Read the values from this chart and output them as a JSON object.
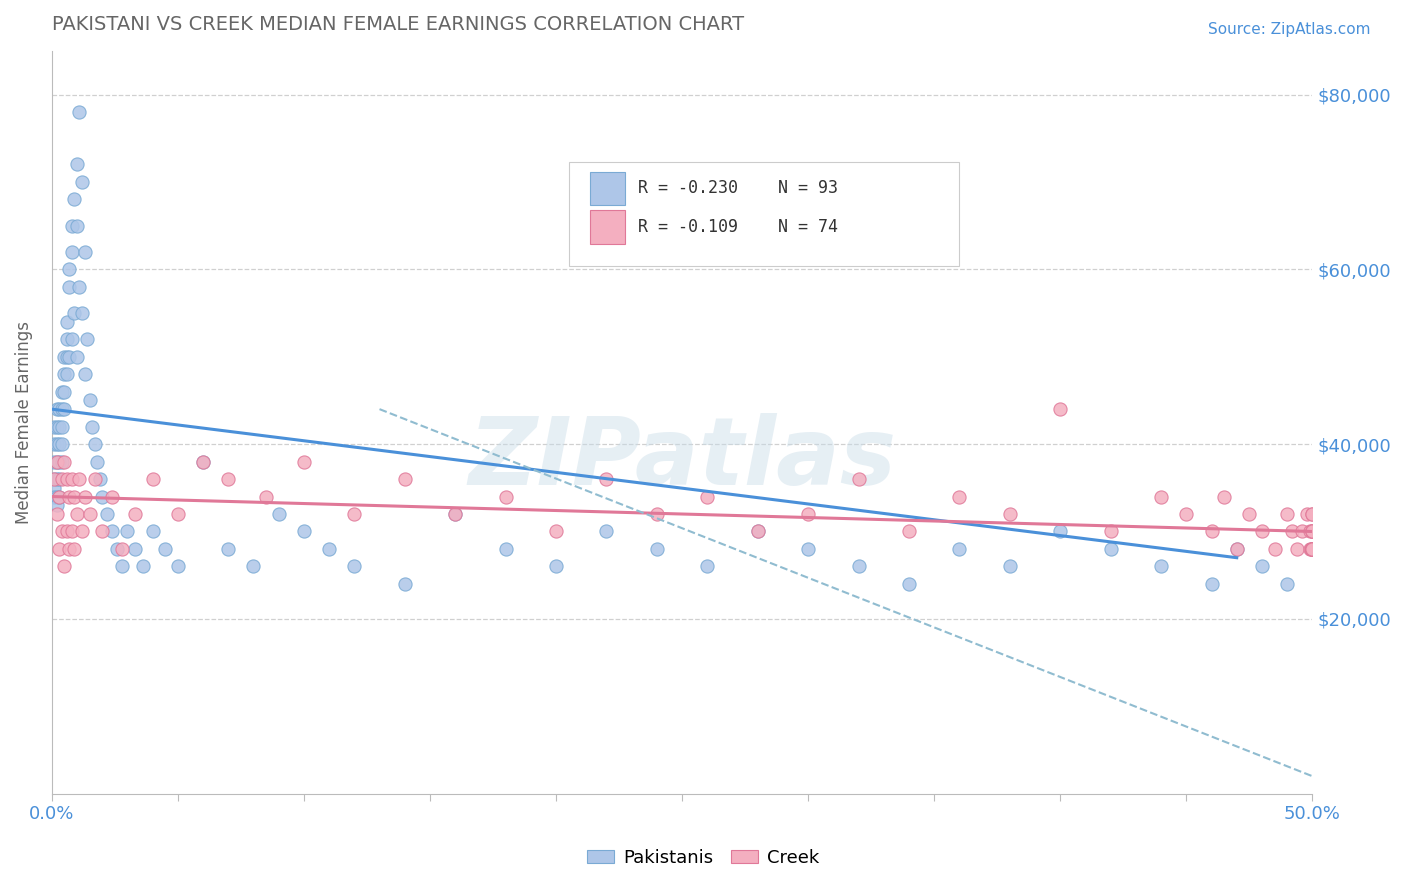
{
  "title": "PAKISTANI VS CREEK MEDIAN FEMALE EARNINGS CORRELATION CHART",
  "source_text": "Source: ZipAtlas.com",
  "ylabel": "Median Female Earnings",
  "xlim": [
    0.0,
    0.5
  ],
  "ylim": [
    0,
    85000
  ],
  "xticks": [
    0.0,
    0.05,
    0.1,
    0.15,
    0.2,
    0.25,
    0.3,
    0.35,
    0.4,
    0.45,
    0.5
  ],
  "xticklabels": [
    "0.0%",
    "",
    "",
    "",
    "",
    "",
    "",
    "",
    "",
    "",
    "50.0%"
  ],
  "ytick_labels_right": [
    "$20,000",
    "$40,000",
    "$60,000",
    "$80,000"
  ],
  "ytick_values_right": [
    20000,
    40000,
    60000,
    80000
  ],
  "pakistani_color": "#aec6e8",
  "creek_color": "#f4afc0",
  "pakistani_edge": "#7aaad4",
  "creek_edge": "#e07898",
  "blue_line_color": "#4a90d9",
  "pink_line_color": "#e07898",
  "dash_line_color": "#90bcd0",
  "legend_R1": "R = -0.230",
  "legend_N1": "N = 93",
  "legend_R2": "R = -0.109",
  "legend_N2": "N = 74",
  "watermark": "ZIPatlas",
  "watermark_color": "#c8dce8",
  "pakistani_x": [
    0.001,
    0.001,
    0.001,
    0.001,
    0.001,
    0.001,
    0.002,
    0.002,
    0.002,
    0.002,
    0.002,
    0.002,
    0.002,
    0.003,
    0.003,
    0.003,
    0.003,
    0.003,
    0.003,
    0.004,
    0.004,
    0.004,
    0.004,
    0.004,
    0.005,
    0.005,
    0.005,
    0.005,
    0.006,
    0.006,
    0.006,
    0.006,
    0.007,
    0.007,
    0.007,
    0.008,
    0.008,
    0.008,
    0.009,
    0.009,
    0.01,
    0.01,
    0.01,
    0.011,
    0.011,
    0.012,
    0.012,
    0.013,
    0.013,
    0.014,
    0.015,
    0.016,
    0.017,
    0.018,
    0.019,
    0.02,
    0.022,
    0.024,
    0.026,
    0.028,
    0.03,
    0.033,
    0.036,
    0.04,
    0.045,
    0.05,
    0.06,
    0.07,
    0.08,
    0.09,
    0.1,
    0.11,
    0.12,
    0.14,
    0.16,
    0.18,
    0.2,
    0.22,
    0.24,
    0.26,
    0.28,
    0.3,
    0.32,
    0.34,
    0.36,
    0.38,
    0.4,
    0.42,
    0.44,
    0.46,
    0.47,
    0.48,
    0.49
  ],
  "pakistani_y": [
    42000,
    40000,
    38000,
    36000,
    35000,
    34000,
    44000,
    42000,
    40000,
    38000,
    36000,
    34000,
    33000,
    44000,
    42000,
    40000,
    38000,
    36000,
    34000,
    46000,
    44000,
    42000,
    40000,
    38000,
    50000,
    48000,
    46000,
    44000,
    54000,
    52000,
    50000,
    48000,
    60000,
    58000,
    50000,
    65000,
    62000,
    52000,
    68000,
    55000,
    72000,
    65000,
    50000,
    78000,
    58000,
    70000,
    55000,
    62000,
    48000,
    52000,
    45000,
    42000,
    40000,
    38000,
    36000,
    34000,
    32000,
    30000,
    28000,
    26000,
    30000,
    28000,
    26000,
    30000,
    28000,
    26000,
    38000,
    28000,
    26000,
    32000,
    30000,
    28000,
    26000,
    24000,
    32000,
    28000,
    26000,
    30000,
    28000,
    26000,
    30000,
    28000,
    26000,
    24000,
    28000,
    26000,
    30000,
    28000,
    26000,
    24000,
    28000,
    26000,
    24000
  ],
  "creek_x": [
    0.001,
    0.002,
    0.002,
    0.003,
    0.003,
    0.004,
    0.004,
    0.005,
    0.005,
    0.006,
    0.006,
    0.007,
    0.007,
    0.008,
    0.008,
    0.009,
    0.009,
    0.01,
    0.011,
    0.012,
    0.013,
    0.015,
    0.017,
    0.02,
    0.024,
    0.028,
    0.033,
    0.04,
    0.05,
    0.06,
    0.07,
    0.085,
    0.1,
    0.12,
    0.14,
    0.16,
    0.18,
    0.2,
    0.22,
    0.24,
    0.26,
    0.28,
    0.3,
    0.32,
    0.34,
    0.36,
    0.38,
    0.4,
    0.42,
    0.44,
    0.45,
    0.46,
    0.465,
    0.47,
    0.475,
    0.48,
    0.485,
    0.49,
    0.492,
    0.494,
    0.496,
    0.498,
    0.499,
    0.499,
    0.4995,
    0.4998,
    0.4998,
    0.4999,
    0.4999,
    0.4999,
    0.4999,
    0.4999,
    0.4999,
    0.4999
  ],
  "creek_y": [
    36000,
    38000,
    32000,
    34000,
    28000,
    36000,
    30000,
    38000,
    26000,
    36000,
    30000,
    34000,
    28000,
    36000,
    30000,
    34000,
    28000,
    32000,
    36000,
    30000,
    34000,
    32000,
    36000,
    30000,
    34000,
    28000,
    32000,
    36000,
    32000,
    38000,
    36000,
    34000,
    38000,
    32000,
    36000,
    32000,
    34000,
    30000,
    36000,
    32000,
    34000,
    30000,
    32000,
    36000,
    30000,
    34000,
    32000,
    44000,
    30000,
    34000,
    32000,
    30000,
    34000,
    28000,
    32000,
    30000,
    28000,
    32000,
    30000,
    28000,
    30000,
    32000,
    28000,
    30000,
    28000,
    30000,
    32000,
    28000,
    30000,
    28000,
    30000,
    28000,
    32000,
    28000
  ],
  "blue_line_x": [
    0.0,
    0.47
  ],
  "blue_line_y": [
    44000,
    27000
  ],
  "pink_line_x": [
    0.0,
    0.5
  ],
  "pink_line_y": [
    34000,
    30000
  ],
  "dash_line_x": [
    0.13,
    0.5
  ],
  "dash_line_y": [
    44000,
    2000
  ],
  "grid_color": "#d0d0d0",
  "background_color": "#ffffff",
  "title_color": "#666666",
  "axis_color": "#4a90d9",
  "ylabel_color": "#666666"
}
